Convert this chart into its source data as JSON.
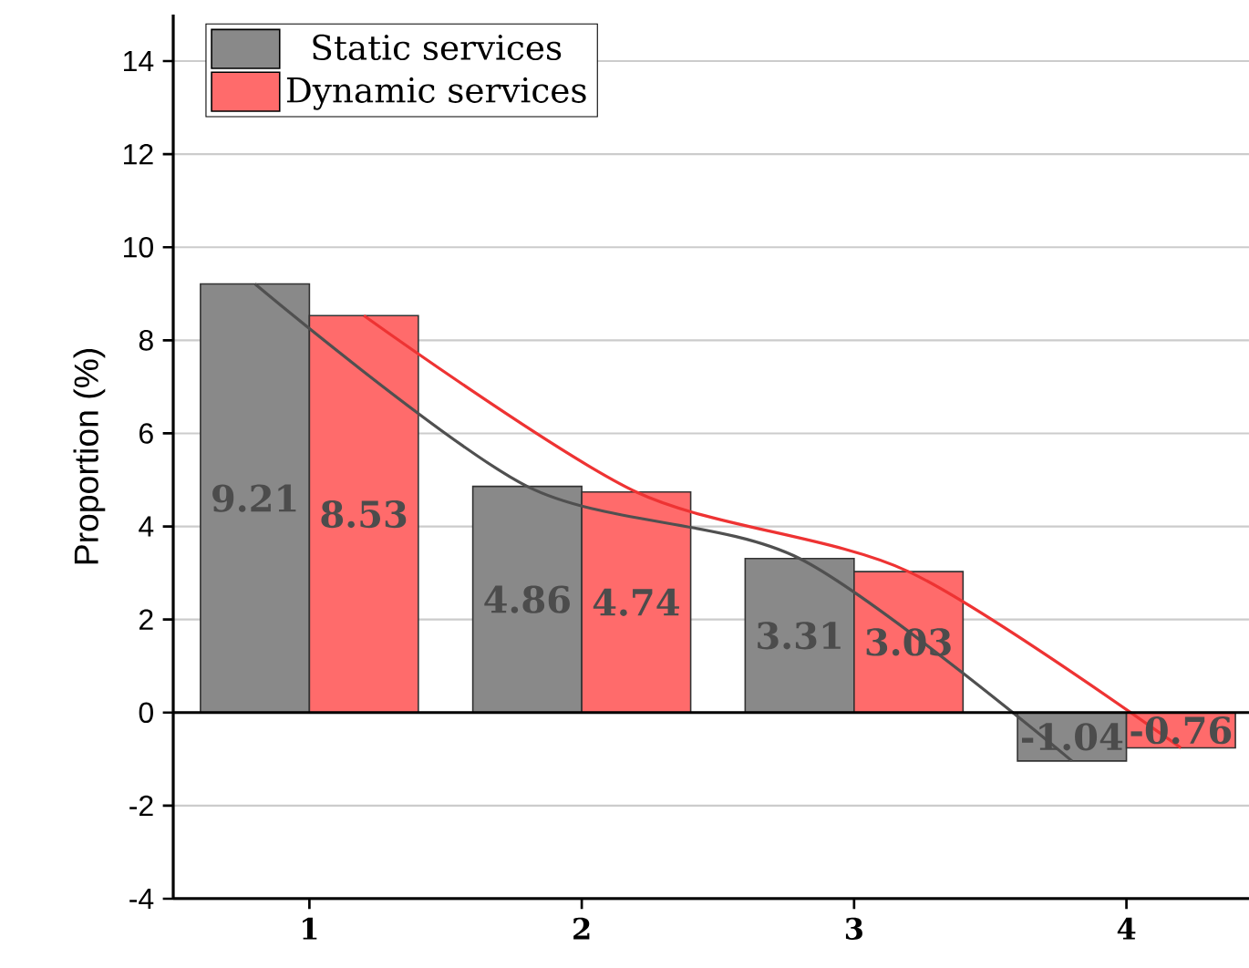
{
  "chart_data": {
    "type": "bar",
    "ylabel": "Proportion (%)",
    "x": [
      1,
      2,
      3,
      4
    ],
    "series": [
      {
        "name": "Static services",
        "color": "#898989",
        "values": [
          9.21,
          4.86,
          3.31,
          -1.04
        ],
        "value_labels": [
          "9.21",
          "4.86",
          "3.31",
          "-1.04"
        ]
      },
      {
        "name": "Dynamic services",
        "color": "#ff6b6b",
        "values": [
          8.53,
          4.74,
          3.03,
          -0.76
        ],
        "value_labels": [
          "8.53",
          "4.74",
          "3.03",
          "-0.76"
        ]
      },
      {
        "type": "line",
        "color": "#505050",
        "x": [
          0.8,
          1.8,
          2.8,
          3.8
        ],
        "values": [
          9.21,
          4.86,
          3.31,
          -1.04
        ]
      },
      {
        "type": "line",
        "color": "#ee3333",
        "x": [
          1.2,
          2.2,
          3.2,
          4.2
        ],
        "values": [
          8.53,
          4.74,
          3.03,
          -0.76
        ]
      }
    ],
    "xlim": [
      0.5,
      4.45
    ],
    "xticks": [
      1,
      2,
      3,
      4
    ],
    "ylim": [
      -4,
      15
    ],
    "yticks": [
      -4,
      -2,
      0,
      2,
      4,
      6,
      8,
      10,
      12,
      14
    ],
    "ref_lines": [
      {
        "axis": "y",
        "value": 0,
        "color": "#000000"
      }
    ],
    "grid": "y",
    "legend": "top left"
  }
}
